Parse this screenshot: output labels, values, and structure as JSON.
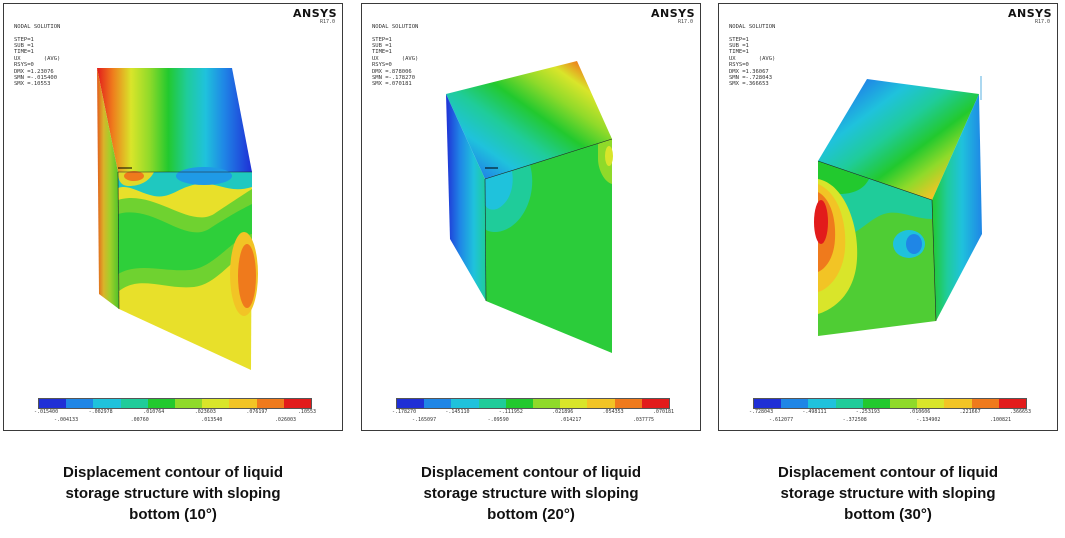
{
  "brand": "ANSYS",
  "brand_sub": "R17.0",
  "legend_colors": [
    "#1f2fd6",
    "#1f86e6",
    "#1fc2dc",
    "#1fcc9a",
    "#22c92e",
    "#8fda2a",
    "#d9e52a",
    "#f2c425",
    "#ef7a1c",
    "#e21b1b"
  ],
  "panels": [
    {
      "info": [
        "NODAL SOLUTION",
        "",
        "STEP=1",
        "SUB =1",
        "TIME=1",
        "UX       (AVG)",
        "RSYS=0",
        "DMX =1.23076",
        "SMN =-.015400",
        "SMX =.10553"
      ],
      "ticks_upper": [
        "-.015400",
        "-.002978",
        ".010764",
        ".023603",
        ".076197",
        ".10553"
      ],
      "ticks_lower": [
        "-.004133",
        ".00760",
        ".013540",
        ".026003"
      ],
      "caption": [
        "Displacement contour of liquid",
        "storage structure with sloping",
        "bottom (10°)"
      ]
    },
    {
      "info": [
        "NODAL SOLUTION",
        "",
        "STEP=1",
        "SUB =1",
        "TIME=1",
        "UX       (AVG)",
        "RSYS=0",
        "DMX =.878006",
        "SMN =-.178270",
        "SMX =.070181"
      ],
      "ticks_upper": [
        "-.178270",
        "-.145110",
        "-.111952",
        ".021896",
        ".054353",
        ".070181"
      ],
      "ticks_lower": [
        "-.165097",
        "-.09590",
        ".014217",
        ".037775"
      ],
      "caption": [
        "Displacement contour of liquid",
        "storage structure with sloping",
        "bottom (20°)"
      ]
    },
    {
      "info": [
        "NODAL SOLUTION",
        "",
        "STEP=1",
        "SUB =1",
        "TIME=1",
        "UX       (AVG)",
        "RSYS=0",
        "DMX =1.36067",
        "SMN =-.728043",
        "SMX =.366653"
      ],
      "ticks_upper": [
        "-.728043",
        "-.498111",
        "-.253193",
        ".010606",
        ".221667",
        ".366653"
      ],
      "ticks_lower": [
        "-.612077",
        "-.372508",
        "-.134902",
        ".100821"
      ],
      "caption": [
        "Displacement contour of liquid",
        "storage structure with sloping",
        "bottom (30°)"
      ]
    }
  ]
}
